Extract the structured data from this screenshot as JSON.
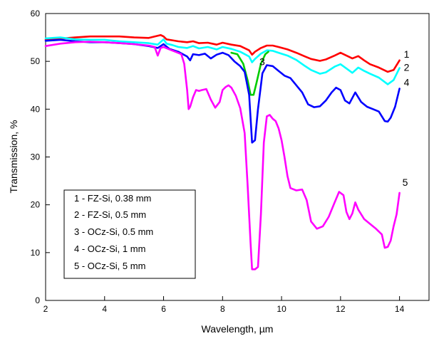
{
  "chart_data": {
    "type": "line",
    "title": "",
    "xlabel": "Wavelength, µm",
    "ylabel": "Transmission, %",
    "xlim": [
      2,
      15
    ],
    "ylim": [
      0,
      60
    ],
    "x_ticks": [
      2,
      4,
      6,
      8,
      10,
      12,
      14
    ],
    "y_ticks": [
      0,
      10,
      20,
      30,
      40,
      50,
      60
    ],
    "grid": false,
    "legend_placement": "lower-left",
    "legend": [
      "1 - FZ-Si, 0.38 mm",
      "2 - FZ-Si, 0.5 mm",
      "3 - OCz-Si, 0.5 mm",
      "4 - OCz-Si, 1 mm",
      "5 - OCz-Si, 5 mm"
    ],
    "series": [
      {
        "label": "1",
        "color": "#ff0000",
        "x": [
          2.0,
          2.3,
          2.6,
          3.0,
          3.5,
          4.0,
          4.5,
          5.0,
          5.5,
          5.9,
          6.0,
          6.1,
          6.3,
          6.5,
          6.8,
          7.0,
          7.2,
          7.5,
          7.8,
          8.0,
          8.3,
          8.6,
          8.9,
          9.0,
          9.1,
          9.3,
          9.5,
          9.7,
          9.9,
          10.2,
          10.5,
          10.8,
          11.0,
          11.3,
          11.5,
          11.8,
          12.0,
          12.2,
          12.4,
          12.6,
          12.8,
          13.0,
          13.3,
          13.6,
          13.8,
          14.0
        ],
        "y": [
          54.5,
          54.7,
          54.8,
          55.0,
          55.2,
          55.2,
          55.2,
          55.0,
          54.9,
          55.5,
          55.2,
          54.6,
          54.4,
          54.2,
          54.0,
          54.2,
          53.8,
          53.9,
          53.5,
          53.9,
          53.5,
          53.2,
          52.3,
          51.4,
          52.0,
          52.8,
          53.3,
          53.3,
          53.0,
          52.5,
          51.8,
          51.0,
          50.5,
          50.1,
          50.4,
          51.2,
          51.8,
          51.2,
          50.6,
          51.1,
          50.2,
          49.4,
          48.7,
          47.8,
          48.2,
          50.2
        ]
      },
      {
        "label": "2",
        "color": "#00ffff",
        "x": [
          2.0,
          2.5,
          3.0,
          3.5,
          4.0,
          4.5,
          5.0,
          5.5,
          5.8,
          6.0,
          6.1,
          6.3,
          6.5,
          6.8,
          7.0,
          7.2,
          7.5,
          7.8,
          8.0,
          8.3,
          8.6,
          8.9,
          9.0,
          9.1,
          9.3,
          9.5,
          9.7,
          9.9,
          10.2,
          10.5,
          10.8,
          11.0,
          11.3,
          11.5,
          11.8,
          12.0,
          12.2,
          12.4,
          12.6,
          12.8,
          13.0,
          13.3,
          13.6,
          13.8,
          14.0
        ],
        "y": [
          54.8,
          55.0,
          54.6,
          54.5,
          54.5,
          54.2,
          54.0,
          53.8,
          53.5,
          54.6,
          53.7,
          53.4,
          53.0,
          52.8,
          53.2,
          52.7,
          53.0,
          52.5,
          53.0,
          52.6,
          52.0,
          51.0,
          49.8,
          50.5,
          51.6,
          52.3,
          52.2,
          51.8,
          51.2,
          50.3,
          49.0,
          48.2,
          47.4,
          47.7,
          48.9,
          49.4,
          48.5,
          47.6,
          48.7,
          48.0,
          47.4,
          46.6,
          45.2,
          46.1,
          48.6
        ]
      },
      {
        "label": "3",
        "color": "#00cc00",
        "x": [
          8.3,
          8.5,
          8.7,
          8.85,
          8.95,
          9.05,
          9.15,
          9.3,
          9.45,
          9.55
        ],
        "y": [
          51.8,
          51.5,
          49.5,
          46.0,
          43.0,
          43.0,
          45.5,
          49.5,
          51.5,
          52.0
        ]
      },
      {
        "label": "4",
        "color": "#0000ff",
        "x": [
          2.0,
          2.5,
          3.0,
          3.5,
          4.0,
          4.5,
          5.0,
          5.5,
          5.8,
          6.0,
          6.2,
          6.5,
          6.8,
          6.9,
          7.0,
          7.2,
          7.4,
          7.6,
          7.8,
          8.0,
          8.2,
          8.4,
          8.6,
          8.75,
          8.9,
          9.0,
          9.1,
          9.2,
          9.35,
          9.5,
          9.7,
          9.9,
          10.1,
          10.3,
          10.5,
          10.7,
          10.9,
          11.1,
          11.3,
          11.5,
          11.7,
          11.85,
          12.0,
          12.15,
          12.3,
          12.5,
          12.7,
          12.9,
          13.1,
          13.3,
          13.5,
          13.6,
          13.7,
          13.85,
          14.0
        ],
        "y": [
          54.3,
          54.5,
          54.2,
          54.0,
          54.0,
          53.8,
          53.6,
          53.2,
          52.8,
          53.6,
          52.6,
          52.0,
          51.0,
          50.2,
          51.5,
          51.3,
          51.6,
          50.6,
          51.4,
          51.8,
          51.3,
          50.0,
          49.0,
          47.8,
          43.0,
          33.0,
          33.5,
          40.0,
          47.5,
          49.2,
          49.0,
          48.0,
          47.0,
          46.5,
          45.0,
          43.5,
          41.0,
          40.4,
          40.6,
          41.8,
          43.5,
          44.5,
          44.0,
          41.8,
          41.2,
          43.5,
          41.5,
          40.5,
          40.0,
          39.5,
          37.5,
          37.4,
          38.2,
          40.5,
          44.3
        ]
      },
      {
        "label": "5",
        "color": "#ff00ff",
        "x": [
          2.0,
          2.5,
          3.0,
          3.5,
          4.0,
          4.5,
          5.0,
          5.5,
          5.7,
          5.8,
          5.9,
          6.0,
          6.2,
          6.4,
          6.6,
          6.7,
          6.8,
          6.85,
          6.9,
          7.0,
          7.1,
          7.2,
          7.3,
          7.45,
          7.6,
          7.75,
          7.9,
          8.0,
          8.1,
          8.2,
          8.3,
          8.45,
          8.6,
          8.75,
          8.85,
          8.95,
          9.0,
          9.1,
          9.2,
          9.3,
          9.4,
          9.5,
          9.6,
          9.7,
          9.8,
          9.9,
          10.0,
          10.1,
          10.2,
          10.3,
          10.5,
          10.7,
          10.85,
          11.0,
          11.2,
          11.4,
          11.6,
          11.8,
          11.95,
          12.1,
          12.2,
          12.3,
          12.4,
          12.5,
          12.6,
          12.8,
          13.0,
          13.2,
          13.4,
          13.5,
          13.6,
          13.7,
          13.8,
          13.9,
          14.0
        ],
        "y": [
          53.2,
          53.7,
          54.0,
          54.1,
          54.0,
          53.8,
          53.6,
          53.3,
          53.0,
          51.2,
          52.8,
          53.0,
          52.5,
          52.0,
          51.5,
          49.5,
          44.0,
          40.0,
          40.5,
          42.5,
          44.0,
          43.8,
          44.0,
          44.2,
          42.0,
          40.3,
          41.5,
          44.0,
          44.6,
          45.0,
          44.5,
          42.8,
          40.2,
          35.0,
          24.0,
          12.0,
          6.5,
          6.5,
          7.0,
          18.0,
          33.0,
          38.5,
          38.8,
          38.0,
          37.5,
          36.0,
          33.5,
          30.0,
          26.0,
          23.5,
          23.0,
          23.2,
          21.0,
          16.5,
          15.0,
          15.5,
          17.5,
          20.5,
          22.7,
          22.0,
          18.5,
          17.0,
          18.2,
          20.5,
          19.0,
          17.0,
          16.0,
          15.0,
          13.8,
          11.0,
          11.2,
          12.5,
          15.5,
          18.0,
          22.5
        ]
      }
    ]
  }
}
